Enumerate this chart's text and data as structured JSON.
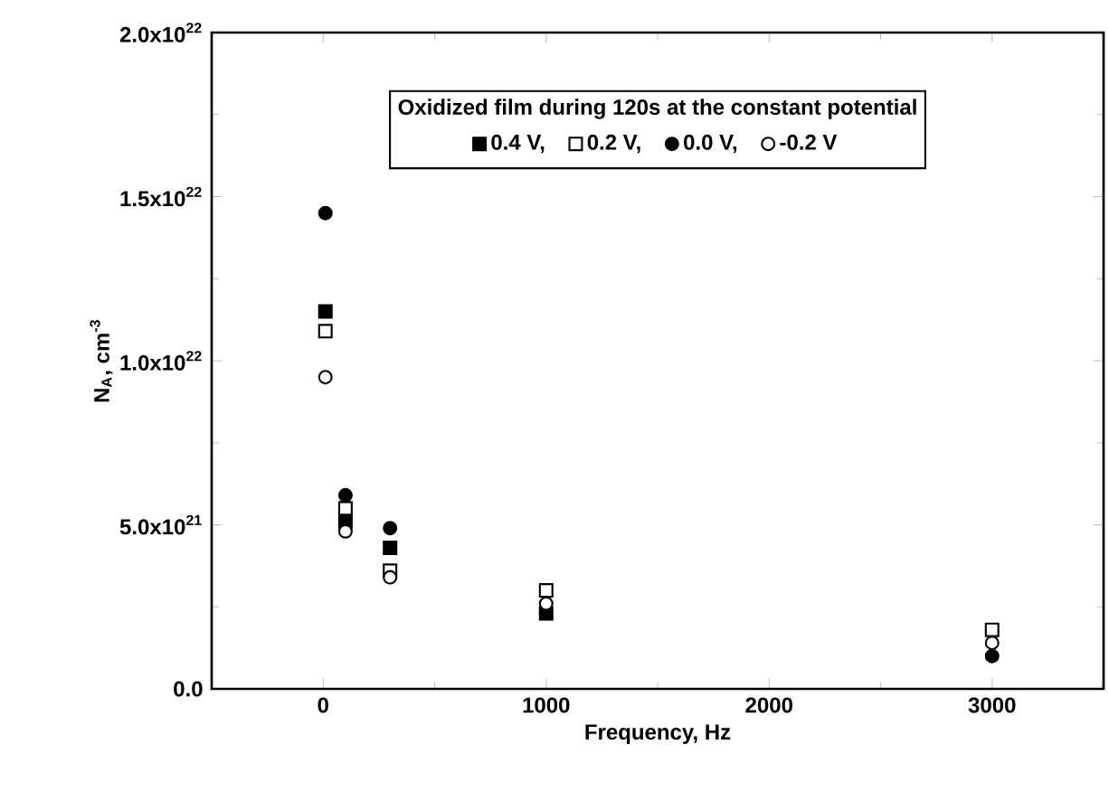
{
  "chart_data": {
    "type": "scatter",
    "xlabel": "Frequency, Hz",
    "ylabel": "N$_{A}$, cm$^{-3}$",
    "legend_title": "Oxidized film during 120s at the constant potential",
    "legend": "top",
    "x": [
      10,
      100,
      300,
      1000,
      3000
    ],
    "xlim": [
      -500,
      3500
    ],
    "xticks": [
      0,
      1000,
      2000,
      3000
    ],
    "ylim": [
      0,
      2e+22
    ],
    "yticks": [
      {
        "value": 0,
        "label": "0.0"
      },
      {
        "value": 5e+21,
        "label": "5.0x10$^{21}$"
      },
      {
        "value": 1e+22,
        "label": "1.0x10$^{22}$"
      },
      {
        "value": 1.5e+22,
        "label": "1.5x10$^{22}$"
      },
      {
        "value": 2e+22,
        "label": "2.0x10$^{22}$"
      }
    ],
    "series": [
      {
        "name": "0.4 V,",
        "color": "#000000",
        "marker": "square",
        "values": [
          1.15e+22,
          5.1e+21,
          4.3e+21,
          2.3e+21,
          null
        ]
      },
      {
        "name": "0.2 V,",
        "color": "#ffffff",
        "marker": "square",
        "values": [
          1.09e+22,
          5.5e+21,
          3.6e+21,
          3e+21,
          1.8e+21
        ]
      },
      {
        "name": "0.0 V,",
        "color": "#000000",
        "marker": "circle",
        "values": [
          1.45e+22,
          5.9e+21,
          4.9e+21,
          null,
          1e+21
        ]
      },
      {
        "name": "-0.2 V",
        "color": "#ffffff",
        "marker": "circle",
        "values": [
          9.5e+21,
          4.8e+21,
          3.4e+21,
          2.6e+21,
          1.4e+21
        ]
      }
    ]
  }
}
